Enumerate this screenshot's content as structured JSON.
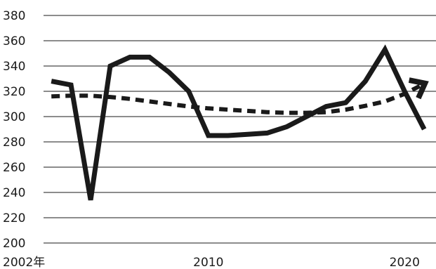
{
  "chart_data": {
    "type": "line",
    "title": "",
    "xlabel": "",
    "ylabel": "",
    "x": [
      2002,
      2003,
      2004,
      2005,
      2006,
      2007,
      2008,
      2009,
      2010,
      2011,
      2012,
      2013,
      2014,
      2015,
      2016,
      2017,
      2018,
      2019,
      2020,
      2021
    ],
    "xlim": [
      2001.6,
      2021.6
    ],
    "ylim": [
      200,
      380
    ],
    "yticks": [
      380,
      360,
      340,
      320,
      300,
      280,
      260,
      240,
      220,
      200
    ],
    "xticks": [
      {
        "value": 2002,
        "label": "2002年"
      },
      {
        "value": 2010,
        "label": "2010"
      },
      {
        "value": 2020,
        "label": "2020"
      }
    ],
    "grid": "horizontal",
    "legend": "none",
    "series": [
      {
        "style": "solid",
        "color": "#1a1a1a",
        "values": [
          328,
          325,
          234,
          340,
          347,
          347,
          335,
          320,
          285,
          285,
          286,
          287,
          292,
          300,
          308,
          311,
          328,
          353,
          320,
          290
        ]
      },
      {
        "style": "dashed-trend",
        "color": "#1a1a1a",
        "values": [
          316,
          316.5,
          316.5,
          315.5,
          314,
          312,
          310,
          308,
          306.5,
          305.5,
          304.5,
          303.5,
          303,
          303,
          303.5,
          305.5,
          308.5,
          312,
          318,
          326
        ]
      }
    ]
  }
}
